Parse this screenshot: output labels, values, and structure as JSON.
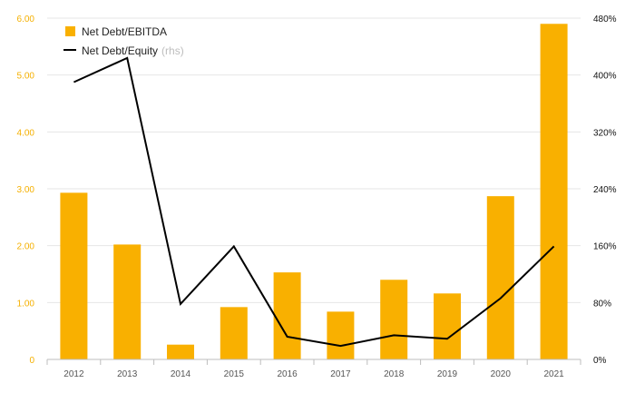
{
  "chart_data": {
    "type": "bar+line",
    "categories": [
      "2012",
      "2013",
      "2014",
      "2015",
      "2016",
      "2017",
      "2018",
      "2019",
      "2020",
      "2021"
    ],
    "series": [
      {
        "name": "Net Debt/EBITDA",
        "type": "bar",
        "axis": "left",
        "color": "#f9b000",
        "values": [
          2.93,
          2.02,
          0.26,
          0.92,
          1.53,
          0.84,
          1.4,
          1.16,
          2.87,
          5.9
        ]
      },
      {
        "name": "Net Debt/Equity",
        "name_note": "(rhs)",
        "type": "line",
        "axis": "right",
        "color": "#000000",
        "values": [
          390,
          424,
          78,
          159,
          32,
          19,
          34,
          29,
          86,
          159
        ]
      }
    ],
    "y_left": {
      "min": 0,
      "max": 6,
      "ticks": [
        "0",
        "1.00",
        "2.00",
        "3.00",
        "4.00",
        "5.00",
        "6.00"
      ],
      "tick_values": [
        0,
        1,
        2,
        3,
        4,
        5,
        6
      ],
      "color": "#f5b000"
    },
    "y_right": {
      "min": 0,
      "max": 480,
      "ticks": [
        "0%",
        "80%",
        "160%",
        "240%",
        "320%",
        "400%",
        "480%"
      ],
      "tick_values": [
        0,
        80,
        160,
        240,
        320,
        400,
        480
      ],
      "color": "#111111"
    },
    "grid": true,
    "legend_position": "top-left",
    "title": "",
    "xlabel": "",
    "ylabel": ""
  }
}
